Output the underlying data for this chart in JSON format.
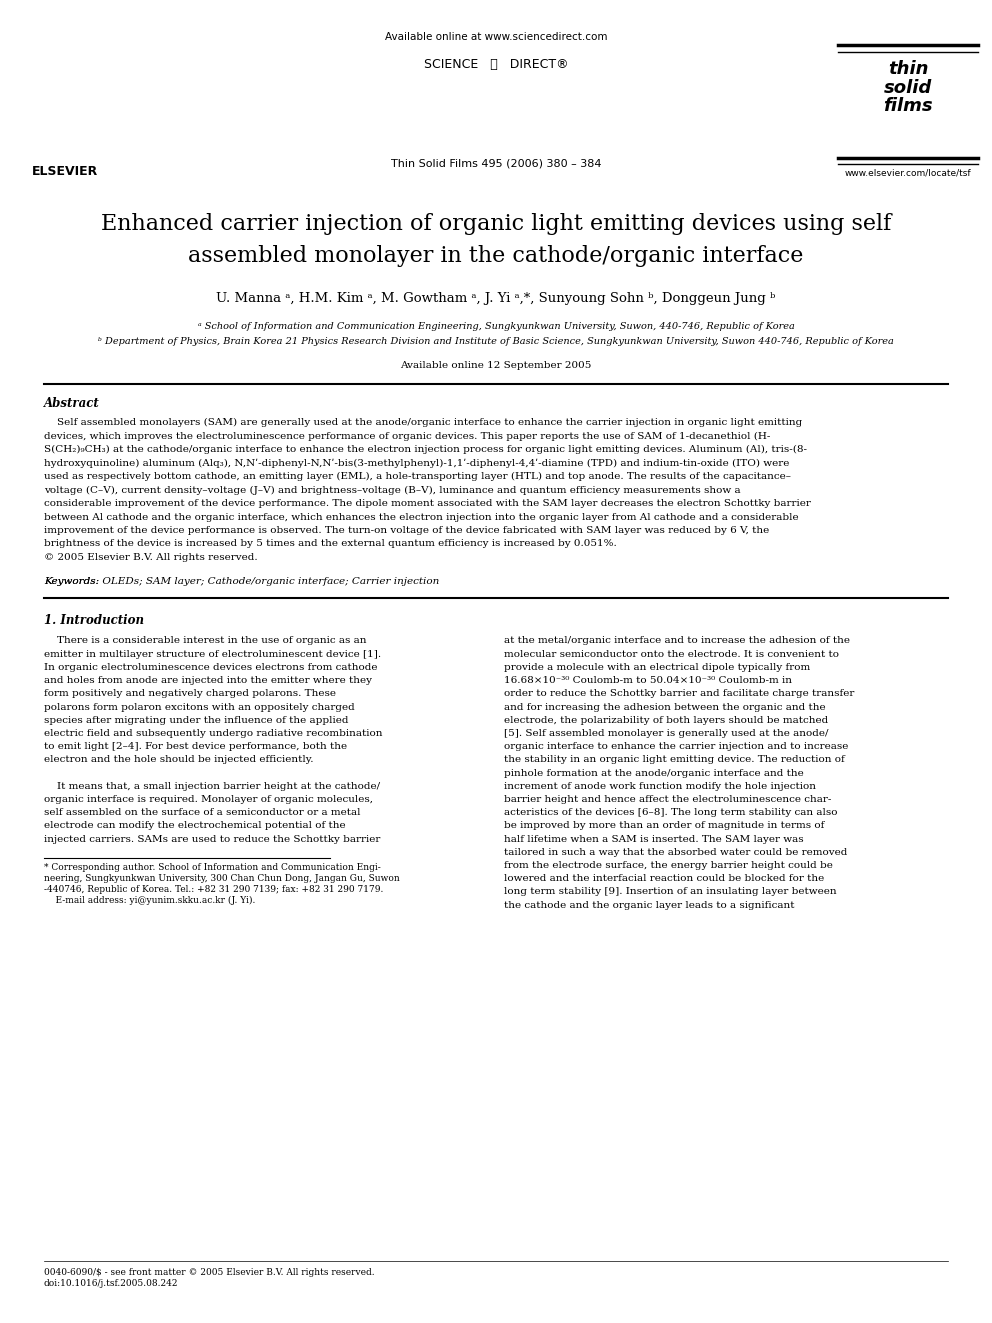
{
  "background_color": "#ffffff",
  "page_width": 9.92,
  "page_height": 13.23,
  "dpi": 100,
  "header_available_online": "Available online at www.sciencedirect.com",
  "header_journal_line": "Thin Solid Films 495 (2006) 380 – 384",
  "header_website": "www.elsevier.com/locate/tsf",
  "header_sciencedirect": "SCIENCE   ⓓ   DIRECT®",
  "header_tsf": "thin\nsolid\nfilms",
  "header_elsevier": "ELSEVIER",
  "title_line1": "Enhanced carrier injection of organic light emitting devices using self",
  "title_line2": "assembled monolayer in the cathode/organic interface",
  "authors_line": "U. Manna ᵃ, H.M. Kim ᵃ, M. Gowtham ᵃ, J. Yi ᵃ,*, Sunyoung Sohn ᵇ, Donggeun Jung ᵇ",
  "affil_a": "ᵃ School of Information and Communication Engineering, Sungkyunkwan University, Suwon, 440-746, Republic of Korea",
  "affil_b": "ᵇ Department of Physics, Brain Korea 21 Physics Research Division and Institute of Basic Science, Sungkyunkwan University, Suwon 440-746, Republic of Korea",
  "available_online_date": "Available online 12 September 2005",
  "abstract_heading": "Abstract",
  "abstract_body": [
    "    Self assembled monolayers (SAM) are generally used at the anode/organic interface to enhance the carrier injection in organic light emitting",
    "devices, which improves the electroluminescence performance of organic devices. This paper reports the use of SAM of 1-decanethiol (H-",
    "S(CH₂)₉CH₃) at the cathode/organic interface to enhance the electron injection process for organic light emitting devices. Aluminum (Al), tris-(8-",
    "hydroxyquinoline) aluminum (Alq₃), N,Nʹ-diphenyl-N,Nʹ-bis(3-methylphenyl)-1,1ʹ-diphenyl-4,4ʹ-diamine (TPD) and indium-tin-oxide (ITO) were",
    "used as respectively bottom cathode, an emitting layer (EML), a hole-transporting layer (HTL) and top anode. The results of the capacitance–",
    "voltage (C–V), current density–voltage (J–V) and brightness–voltage (B–V), luminance and quantum efficiency measurements show a",
    "considerable improvement of the device performance. The dipole moment associated with the SAM layer decreases the electron Schottky barrier",
    "between Al cathode and the organic interface, which enhances the electron injection into the organic layer from Al cathode and a considerable",
    "improvement of the device performance is observed. The turn-on voltage of the device fabricated with SAM layer was reduced by 6 V, the",
    "brightness of the device is increased by 5 times and the external quantum efficiency is increased by 0.051%.",
    "© 2005 Elsevier B.V. All rights reserved."
  ],
  "keywords_line": "Keywords: OLEDs; SAM layer; Cathode/organic interface; Carrier injection",
  "intro_heading": "1. Introduction",
  "intro_col1": [
    "    There is a considerable interest in the use of organic as an",
    "emitter in multilayer structure of electroluminescent device [1].",
    "In organic electroluminescence devices electrons from cathode",
    "and holes from anode are injected into the emitter where they",
    "form positively and negatively charged polarons. These",
    "polarons form polaron excitons with an oppositely charged",
    "species after migrating under the influence of the applied",
    "electric field and subsequently undergo radiative recombination",
    "to emit light [2–4]. For best device performance, both the",
    "electron and the hole should be injected efficiently.",
    "",
    "    It means that, a small injection barrier height at the cathode/",
    "organic interface is required. Monolayer of organic molecules,",
    "self assembled on the surface of a semiconductor or a metal",
    "electrode can modify the electrochemical potential of the",
    "injected carriers. SAMs are used to reduce the Schottky barrier"
  ],
  "intro_col2": [
    "at the metal/organic interface and to increase the adhesion of the",
    "molecular semiconductor onto the electrode. It is convenient to",
    "provide a molecule with an electrical dipole typically from",
    "16.68×10⁻³⁰ Coulomb-m to 50.04×10⁻³⁰ Coulomb-m in",
    "order to reduce the Schottky barrier and facilitate charge transfer",
    "and for increasing the adhesion between the organic and the",
    "electrode, the polarizability of both layers should be matched",
    "[5]. Self assembled monolayer is generally used at the anode/",
    "organic interface to enhance the carrier injection and to increase",
    "the stability in an organic light emitting device. The reduction of",
    "pinhole formation at the anode/organic interface and the",
    "increment of anode work function modify the hole injection",
    "barrier height and hence affect the electroluminescence char-",
    "acteristics of the devices [6–8]. The long term stability can also",
    "be improved by more than an order of magnitude in terms of",
    "half lifetime when a SAM is inserted. The SAM layer was",
    "tailored in such a way that the absorbed water could be removed",
    "from the electrode surface, the energy barrier height could be",
    "lowered and the interfacial reaction could be blocked for the",
    "long term stability [9]. Insertion of an insulating layer between",
    "the cathode and the organic layer leads to a significant"
  ],
  "footnote_line": "* Corresponding author. School of Information and Communication Engi-",
  "footnote_lines": [
    "* Corresponding author. School of Information and Communication Engi-",
    "neering, Sungkyunkwan University, 300 Chan Chun Dong, Jangan Gu, Suwon",
    "-440746, Republic of Korea. Tel.: +82 31 290 7139; fax: +82 31 290 7179.",
    "    E-mail address: yi@yunim.skku.ac.kr (J. Yi)."
  ],
  "footer_lines": [
    "0040-6090/$ - see front matter © 2005 Elsevier B.V. All rights reserved.",
    "doi:10.1016/j.tsf.2005.08.242"
  ]
}
